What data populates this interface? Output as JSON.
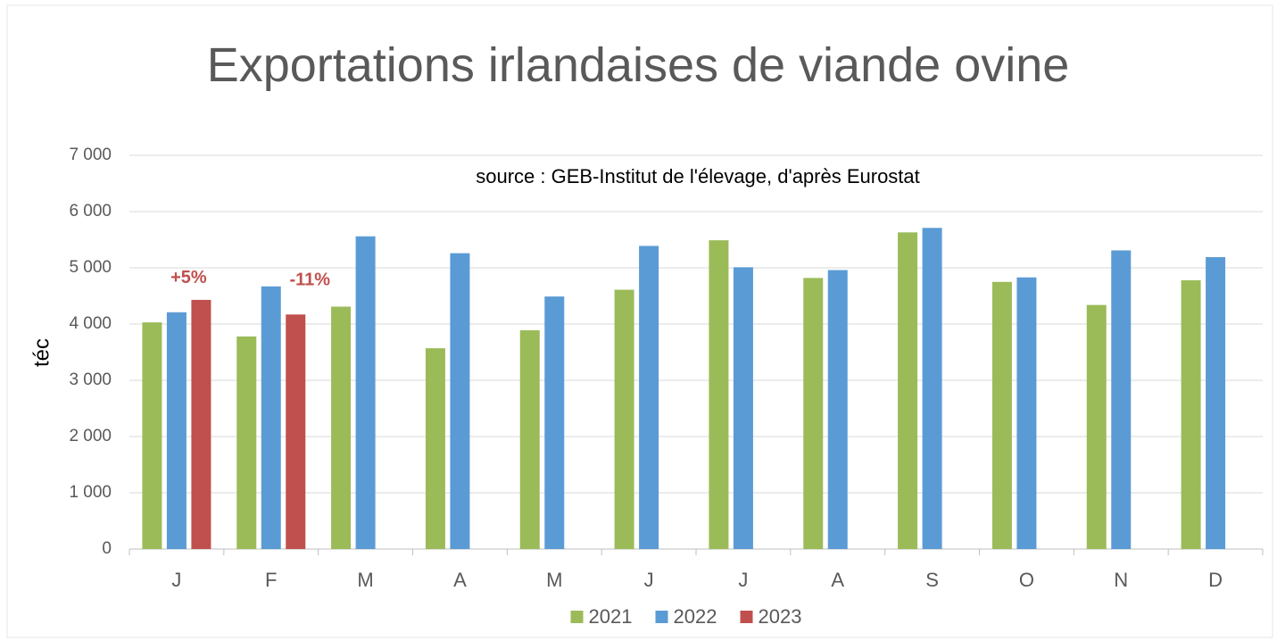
{
  "chart_data": {
    "type": "bar",
    "title": "Exportations irlandaises de viande ovine",
    "subtitle": "source : GEB-Institut de l'élevage, d'après Eurostat",
    "y_label": "téc",
    "categories": [
      "J",
      "F",
      "M",
      "A",
      "M",
      "J",
      "J",
      "A",
      "S",
      "O",
      "N",
      "D"
    ],
    "series": [
      {
        "name": "2021",
        "color": "#9bbb59",
        "values": [
          4030,
          3780,
          4310,
          3570,
          3890,
          4610,
          5490,
          4820,
          5630,
          4750,
          4340,
          4780
        ]
      },
      {
        "name": "2022",
        "color": "#5b9bd5",
        "values": [
          4210,
          4670,
          5560,
          5260,
          4490,
          5390,
          5010,
          4960,
          5710,
          4830,
          5310,
          5190
        ]
      },
      {
        "name": "2023",
        "color": "#c0504d",
        "values": [
          4430,
          4170,
          null,
          null,
          null,
          null,
          null,
          null,
          null,
          null,
          null,
          null
        ]
      }
    ],
    "annotations": [
      "+5%",
      "-11%"
    ],
    "ylim": [
      0,
      7000
    ],
    "yticks": [
      0,
      {
        "value": 1000,
        "label": "1 000"
      },
      {
        "value": 2000,
        "label": "2 000"
      },
      {
        "value": 3000,
        "label": "3 000"
      },
      {
        "value": 4000,
        "label": "4 000"
      },
      {
        "value": 5000,
        "label": "5 000"
      },
      {
        "value": 6000,
        "label": "6 000"
      },
      {
        "value": 7000,
        "label": "7 000"
      }
    ],
    "grid": true,
    "legend": "bottom"
  }
}
